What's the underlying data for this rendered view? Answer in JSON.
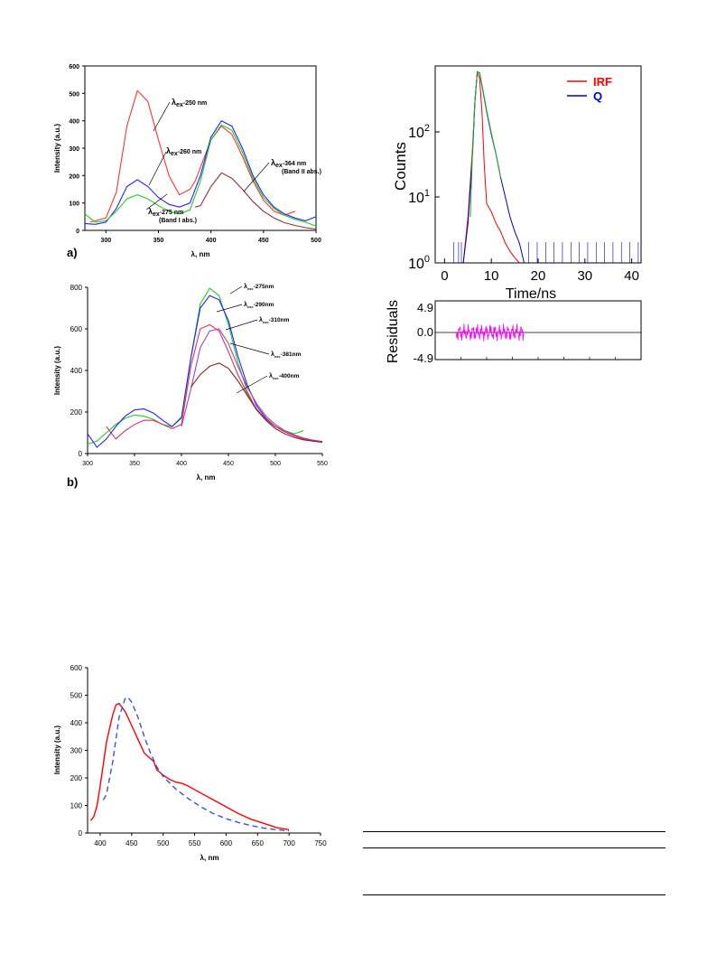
{
  "figure_a": {
    "panel_label": "a)",
    "ylabel": "Intensity (a.u.)",
    "xlabel": "λ, nm",
    "yticks": [
      "0",
      "100",
      "200",
      "300",
      "400",
      "500",
      "600"
    ],
    "xticks": [
      "300",
      "350",
      "400",
      "450",
      "500"
    ],
    "annotations": [
      {
        "sym": "λ",
        "sub": "ex",
        "text": "-250 nm",
        "line2": ""
      },
      {
        "sym": "λ",
        "sub": "ex",
        "text": "-260 nm",
        "line2": ""
      },
      {
        "sym": "λ",
        "sub": "ex",
        "text": "-275 nm",
        "line2": "(Band I abs.)"
      },
      {
        "sym": "λ",
        "sub": "ex",
        "text": "-364 nm",
        "line2": "(Band II abs.)"
      }
    ]
  },
  "figure_b": {
    "panel_label": "b)",
    "ylabel": "Intensity (a.u.)",
    "xlabel": "λ, nm",
    "yticks": [
      "0",
      "200",
      "400",
      "600",
      "800"
    ],
    "xticks": [
      "300",
      "350",
      "400",
      "450",
      "500",
      "550"
    ],
    "annotations": [
      {
        "sym": "λ",
        "sub": "exc",
        "text": "-275nm"
      },
      {
        "sym": "λ",
        "sub": "exc",
        "text": "-290nm"
      },
      {
        "sym": "λ",
        "sub": "exc",
        "text": "-310nm"
      },
      {
        "sym": "λ",
        "sub": "exc",
        "text": "-381nm"
      },
      {
        "sym": "λ",
        "sub": "exc",
        "text": "-400nm"
      }
    ]
  },
  "figure_c": {
    "ylabel": "Counts",
    "xlabel": "Time/ns",
    "yticks": [
      {
        "base": "10",
        "exp": "0"
      },
      {
        "base": "10",
        "exp": "1"
      },
      {
        "base": "10",
        "exp": "2"
      }
    ],
    "xticks": [
      "0",
      "10",
      "20",
      "30",
      "40"
    ],
    "legend": [
      {
        "name": "IRF",
        "color": "#ff0000"
      },
      {
        "name": "Q",
        "color": "#0000cc"
      }
    ],
    "res_ylabel": "Residuals",
    "res_yticks": [
      "4.9",
      "0.0",
      "-4.9"
    ]
  },
  "figure_d": {
    "ylabel": "Intensity (a.u.)",
    "xlabel": "λ, nm",
    "yticks": [
      "0",
      "100",
      "200",
      "300",
      "400",
      "500",
      "600"
    ],
    "xticks": [
      "400",
      "450",
      "500",
      "550",
      "600",
      "650",
      "700",
      "750"
    ]
  },
  "chart_data": [
    {
      "type": "line",
      "xlim": [
        280,
        500
      ],
      "ylim": [
        0,
        600
      ],
      "series": [
        {
          "color": "#ff3333",
          "x": [
            285,
            300,
            310,
            320,
            330,
            340,
            350,
            360,
            370,
            380,
            385,
            390,
            400,
            410,
            420,
            430,
            440,
            450,
            460,
            470,
            480
          ],
          "y": [
            30,
            45,
            140,
            380,
            510,
            470,
            330,
            200,
            130,
            150,
            180,
            230,
            330,
            380,
            350,
            270,
            180,
            110,
            70,
            55,
            70
          ]
        },
        {
          "color": "#2222ff",
          "x": [
            280,
            290,
            300,
            310,
            320,
            330,
            340,
            350,
            360,
            370,
            380,
            390,
            400,
            410,
            420,
            430,
            440,
            450,
            460,
            470,
            480,
            490,
            500
          ],
          "y": [
            25,
            22,
            30,
            80,
            160,
            185,
            160,
            120,
            95,
            85,
            100,
            200,
            340,
            400,
            380,
            300,
            200,
            130,
            85,
            60,
            45,
            35,
            50
          ]
        },
        {
          "color": "#22cc22",
          "x": [
            280,
            290,
            300,
            310,
            320,
            330,
            340,
            350,
            360,
            370,
            380,
            390,
            400,
            410,
            420,
            430,
            440,
            450,
            460,
            470,
            480,
            490,
            500
          ],
          "y": [
            60,
            30,
            35,
            70,
            115,
            130,
            115,
            90,
            70,
            60,
            75,
            180,
            330,
            385,
            365,
            285,
            190,
            120,
            80,
            55,
            40,
            30,
            15
          ]
        },
        {
          "color": "#883333",
          "x": [
            385,
            390,
            400,
            410,
            420,
            430,
            440,
            450,
            460,
            470,
            480,
            490,
            500
          ],
          "y": [
            85,
            90,
            160,
            210,
            190,
            150,
            105,
            70,
            45,
            28,
            18,
            10,
            5
          ]
        }
      ]
    },
    {
      "type": "line",
      "xlim": [
        300,
        550
      ],
      "ylim": [
        0,
        800
      ],
      "series": [
        {
          "color": "#22cc22",
          "x": [
            300,
            310,
            320,
            330,
            340,
            350,
            360,
            370,
            380,
            390,
            400,
            410,
            420,
            430,
            440,
            450,
            460,
            470,
            480,
            490,
            500,
            510,
            520,
            530
          ],
          "y": [
            45,
            60,
            100,
            140,
            170,
            185,
            180,
            165,
            140,
            130,
            170,
            460,
            720,
            795,
            760,
            620,
            440,
            300,
            210,
            160,
            130,
            110,
            95,
            110
          ]
        },
        {
          "color": "#2222ff",
          "x": [
            300,
            310,
            320,
            330,
            340,
            350,
            360,
            370,
            380,
            390,
            400,
            410,
            420,
            430,
            440,
            450,
            460,
            470,
            480,
            490,
            500,
            510,
            520,
            530,
            540,
            550
          ],
          "y": [
            95,
            30,
            70,
            130,
            180,
            210,
            215,
            195,
            160,
            130,
            175,
            460,
            700,
            760,
            740,
            640,
            470,
            330,
            230,
            170,
            130,
            105,
            85,
            70,
            60,
            55
          ]
        },
        {
          "color": "#dd3355",
          "x": [
            320,
            330,
            340,
            350,
            360,
            370,
            380,
            390,
            400,
            410,
            420,
            430,
            440,
            450,
            460,
            470,
            480,
            490,
            500,
            510,
            520,
            530,
            540,
            550
          ],
          "y": [
            130,
            70,
            110,
            140,
            160,
            160,
            140,
            120,
            140,
            420,
            600,
            620,
            590,
            490,
            380,
            290,
            215,
            165,
            130,
            105,
            85,
            70,
            62,
            55
          ]
        },
        {
          "color": "#aa44aa",
          "x": [
            400,
            410,
            420,
            430,
            440,
            450,
            460,
            470,
            480,
            490,
            500,
            510,
            520,
            530,
            540,
            550
          ],
          "y": [
            130,
            310,
            510,
            590,
            600,
            530,
            420,
            320,
            240,
            180,
            140,
            110,
            90,
            75,
            65,
            58
          ]
        },
        {
          "color": "#882222",
          "x": [
            410,
            420,
            430,
            440,
            450,
            460,
            470,
            480,
            490,
            500,
            510,
            520,
            530,
            540,
            550
          ],
          "y": [
            320,
            380,
            420,
            435,
            410,
            350,
            280,
            210,
            160,
            120,
            95,
            78,
            66,
            60,
            55
          ]
        }
      ]
    },
    {
      "type": "line",
      "xlim": [
        -2,
        42
      ],
      "ylim": [
        1,
        1000
      ],
      "yscale": "log",
      "series": [
        {
          "name": "IRF",
          "color": "#ff0000",
          "x": [
            4,
            5,
            6,
            6.5,
            7,
            7.5,
            8,
            8.5,
            9,
            10,
            11,
            12,
            13,
            14,
            15,
            16
          ],
          "y": [
            1,
            5,
            60,
            300,
            800,
            650,
            200,
            30,
            8,
            6,
            4,
            3,
            2,
            1.5,
            1.2,
            1
          ]
        },
        {
          "name": "Q",
          "color": "#0000cc",
          "x": [
            4,
            5,
            6,
            6.5,
            7,
            7.5,
            8,
            9,
            10,
            11,
            12,
            13,
            14,
            15,
            16,
            17
          ],
          "y": [
            1,
            4,
            50,
            280,
            820,
            780,
            500,
            200,
            90,
            45,
            20,
            10,
            5,
            3,
            2,
            1
          ]
        }
      ]
    },
    {
      "type": "line",
      "xlim": [
        380,
        750
      ],
      "ylim": [
        0,
        600
      ],
      "series": [
        {
          "color": "#ff0000",
          "style": "solid",
          "x": [
            385,
            390,
            395,
            400,
            410,
            420,
            425,
            430,
            440,
            450,
            460,
            470,
            480,
            485,
            490,
            500,
            510,
            520,
            530,
            540,
            560,
            580,
            600,
            620,
            640,
            660,
            680,
            700
          ],
          "y": [
            45,
            60,
            100,
            170,
            330,
            430,
            465,
            470,
            440,
            390,
            340,
            290,
            270,
            260,
            230,
            210,
            195,
            185,
            180,
            170,
            145,
            120,
            95,
            70,
            50,
            35,
            20,
            12
          ]
        },
        {
          "color": "#3355dd",
          "style": "dashed",
          "x": [
            405,
            410,
            420,
            430,
            440,
            445,
            450,
            460,
            470,
            480,
            490,
            500,
            520,
            540,
            560,
            580,
            600,
            620,
            640,
            660,
            680,
            700
          ],
          "y": [
            120,
            140,
            260,
            420,
            490,
            490,
            475,
            420,
            350,
            290,
            240,
            205,
            160,
            125,
            95,
            70,
            52,
            38,
            27,
            18,
            12,
            8
          ]
        }
      ]
    }
  ]
}
